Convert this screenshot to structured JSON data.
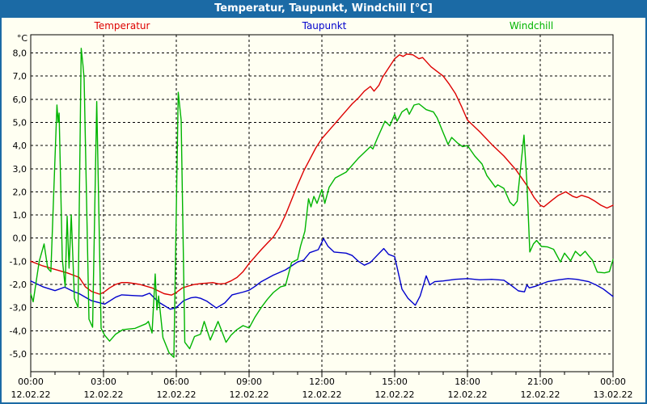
{
  "window": {
    "title": "Temperatur, Taupunkt, Windchill [°C]"
  },
  "legend": {
    "items": [
      {
        "label": "Temperatur",
        "color": "#dd0000"
      },
      {
        "label": "Taupunkt",
        "color": "#0000cc"
      },
      {
        "label": "Windchill",
        "color": "#00b400"
      }
    ]
  },
  "colors": {
    "titlebar": "#1b6aa5",
    "background": "#fffff2",
    "plot_border": "#000000",
    "grid": "#000000",
    "tick_text": "#000000"
  },
  "chart_data": {
    "type": "line",
    "title": "Temperatur, Taupunkt, Windchill [°C]",
    "grid": "dashed",
    "legend_position": "top",
    "y_axis": {
      "unit_label": "°C",
      "min": -5,
      "max": 8,
      "step": 1,
      "tick_labels": [
        "8,0",
        "7,0",
        "6,0",
        "5,0",
        "4,0",
        "3,0",
        "2,0",
        "1,0",
        "0,0",
        "-1,0",
        "-2,0",
        "-3,0",
        "-4,0",
        "-5,0"
      ]
    },
    "x_axis": {
      "span_hours": 24,
      "major_step_hours": 3,
      "minor_step_hours": 1,
      "tick_labels": [
        {
          "time": "00:00",
          "date": "12.02.22"
        },
        {
          "time": "03:00",
          "date": "12.02.22"
        },
        {
          "time": "06:00",
          "date": "12.02.22"
        },
        {
          "time": "09:00",
          "date": "12.02.22"
        },
        {
          "time": "12:00",
          "date": "12.02.22"
        },
        {
          "time": "15:00",
          "date": "12.02.22"
        },
        {
          "time": "18:00",
          "date": "12.02.22"
        },
        {
          "time": "21:00",
          "date": "12.02.22"
        },
        {
          "time": "00:00",
          "date": "13.02.22"
        }
      ]
    },
    "series": [
      {
        "name": "Temperatur",
        "color": "#dd0000",
        "points": [
          [
            0,
            -1.0
          ],
          [
            0.5,
            -1.2
          ],
          [
            1,
            -1.35
          ],
          [
            1.5,
            -1.5
          ],
          [
            1.75,
            -1.6
          ],
          [
            2,
            -1.7
          ],
          [
            2.25,
            -2.1
          ],
          [
            2.5,
            -2.3
          ],
          [
            2.83,
            -2.42
          ],
          [
            3,
            -2.35
          ],
          [
            3.25,
            -2.15
          ],
          [
            3.5,
            -2.0
          ],
          [
            3.75,
            -1.92
          ],
          [
            4,
            -1.92
          ],
          [
            4.5,
            -2.0
          ],
          [
            5,
            -2.15
          ],
          [
            5.5,
            -2.4
          ],
          [
            5.8,
            -2.46
          ],
          [
            6,
            -2.35
          ],
          [
            6.25,
            -2.15
          ],
          [
            6.5,
            -2.07
          ],
          [
            6.75,
            -2.0
          ],
          [
            7,
            -1.97
          ],
          [
            7.5,
            -1.92
          ],
          [
            7.75,
            -1.98
          ],
          [
            8,
            -1.96
          ],
          [
            8.25,
            -1.85
          ],
          [
            8.5,
            -1.7
          ],
          [
            8.75,
            -1.45
          ],
          [
            9,
            -1.1
          ],
          [
            9.25,
            -0.8
          ],
          [
            9.5,
            -0.5
          ],
          [
            9.75,
            -0.22
          ],
          [
            10,
            0.05
          ],
          [
            10.25,
            0.45
          ],
          [
            10.5,
            1.0
          ],
          [
            10.75,
            1.65
          ],
          [
            11,
            2.3
          ],
          [
            11.25,
            2.9
          ],
          [
            11.5,
            3.4
          ],
          [
            11.75,
            3.9
          ],
          [
            12,
            4.3
          ],
          [
            12.25,
            4.6
          ],
          [
            12.5,
            4.9
          ],
          [
            12.75,
            5.2
          ],
          [
            13,
            5.5
          ],
          [
            13.25,
            5.8
          ],
          [
            13.5,
            6.05
          ],
          [
            13.75,
            6.35
          ],
          [
            14,
            6.55
          ],
          [
            14.15,
            6.35
          ],
          [
            14.35,
            6.6
          ],
          [
            14.5,
            6.95
          ],
          [
            14.75,
            7.35
          ],
          [
            15,
            7.75
          ],
          [
            15.2,
            7.92
          ],
          [
            15.35,
            7.85
          ],
          [
            15.5,
            7.95
          ],
          [
            15.75,
            7.92
          ],
          [
            16,
            7.75
          ],
          [
            16.15,
            7.8
          ],
          [
            16.5,
            7.4
          ],
          [
            17,
            7.0
          ],
          [
            17.25,
            6.65
          ],
          [
            17.5,
            6.25
          ],
          [
            17.75,
            5.7
          ],
          [
            18,
            5.1
          ],
          [
            18.25,
            4.85
          ],
          [
            18.5,
            4.6
          ],
          [
            19,
            4.05
          ],
          [
            19.5,
            3.55
          ],
          [
            20,
            2.95
          ],
          [
            20.5,
            2.2
          ],
          [
            20.75,
            1.75
          ],
          [
            21,
            1.42
          ],
          [
            21.15,
            1.35
          ],
          [
            21.5,
            1.65
          ],
          [
            21.75,
            1.85
          ],
          [
            22.05,
            2.0
          ],
          [
            22.35,
            1.8
          ],
          [
            22.5,
            1.75
          ],
          [
            22.7,
            1.85
          ],
          [
            23,
            1.75
          ],
          [
            23.25,
            1.6
          ],
          [
            23.5,
            1.42
          ],
          [
            23.75,
            1.3
          ],
          [
            24,
            1.42
          ]
        ]
      },
      {
        "name": "Taupunkt",
        "color": "#0000cc",
        "points": [
          [
            0,
            -1.85
          ],
          [
            0.5,
            -2.1
          ],
          [
            1,
            -2.27
          ],
          [
            1.4,
            -2.12
          ],
          [
            1.75,
            -2.3
          ],
          [
            2,
            -2.4
          ],
          [
            2.5,
            -2.7
          ],
          [
            3.05,
            -2.85
          ],
          [
            3.5,
            -2.55
          ],
          [
            3.75,
            -2.45
          ],
          [
            4.25,
            -2.48
          ],
          [
            4.6,
            -2.5
          ],
          [
            4.9,
            -2.38
          ],
          [
            5.25,
            -2.75
          ],
          [
            5.75,
            -3.07
          ],
          [
            6,
            -3.0
          ],
          [
            6.3,
            -2.7
          ],
          [
            6.6,
            -2.58
          ],
          [
            6.8,
            -2.55
          ],
          [
            7,
            -2.6
          ],
          [
            7.25,
            -2.72
          ],
          [
            7.65,
            -3.02
          ],
          [
            8,
            -2.8
          ],
          [
            8.3,
            -2.45
          ],
          [
            8.75,
            -2.33
          ],
          [
            9,
            -2.25
          ],
          [
            9.25,
            -2.08
          ],
          [
            9.5,
            -1.88
          ],
          [
            10,
            -1.6
          ],
          [
            10.5,
            -1.37
          ],
          [
            11,
            -1.03
          ],
          [
            11.25,
            -0.95
          ],
          [
            11.5,
            -0.63
          ],
          [
            11.85,
            -0.5
          ],
          [
            12.07,
            -0.02
          ],
          [
            12.25,
            -0.35
          ],
          [
            12.5,
            -0.6
          ],
          [
            13,
            -0.65
          ],
          [
            13.25,
            -0.75
          ],
          [
            13.5,
            -1.0
          ],
          [
            13.75,
            -1.17
          ],
          [
            14,
            -1.05
          ],
          [
            14.3,
            -0.72
          ],
          [
            14.55,
            -0.45
          ],
          [
            14.75,
            -0.7
          ],
          [
            15,
            -0.8
          ],
          [
            15.3,
            -2.2
          ],
          [
            15.55,
            -2.6
          ],
          [
            15.85,
            -2.9
          ],
          [
            16.05,
            -2.5
          ],
          [
            16.3,
            -1.63
          ],
          [
            16.45,
            -2.02
          ],
          [
            16.65,
            -1.88
          ],
          [
            17,
            -1.85
          ],
          [
            17.5,
            -1.78
          ],
          [
            18,
            -1.75
          ],
          [
            18.5,
            -1.8
          ],
          [
            19,
            -1.78
          ],
          [
            19.5,
            -1.82
          ],
          [
            19.75,
            -2.0
          ],
          [
            20.1,
            -2.28
          ],
          [
            20.35,
            -2.32
          ],
          [
            20.45,
            -2.02
          ],
          [
            20.55,
            -2.15
          ],
          [
            20.8,
            -2.08
          ],
          [
            21,
            -2.0
          ],
          [
            21.3,
            -1.88
          ],
          [
            21.75,
            -1.8
          ],
          [
            22.15,
            -1.75
          ],
          [
            22.5,
            -1.78
          ],
          [
            23,
            -1.88
          ],
          [
            23.3,
            -2.02
          ],
          [
            23.6,
            -2.2
          ],
          [
            24,
            -2.52
          ]
        ]
      },
      {
        "name": "Windchill",
        "color": "#00b400",
        "points": [
          [
            0,
            -2.4
          ],
          [
            0.1,
            -2.75
          ],
          [
            0.35,
            -1.0
          ],
          [
            0.55,
            -0.25
          ],
          [
            0.7,
            -1.3
          ],
          [
            0.83,
            -1.45
          ],
          [
            1.08,
            5.75
          ],
          [
            1.13,
            5.0
          ],
          [
            1.17,
            5.4
          ],
          [
            1.3,
            -0.9
          ],
          [
            1.42,
            -2.1
          ],
          [
            1.5,
            0.95
          ],
          [
            1.58,
            -1.3
          ],
          [
            1.67,
            1.0
          ],
          [
            1.8,
            -2.6
          ],
          [
            1.95,
            -3.0
          ],
          [
            2.08,
            8.2
          ],
          [
            2.15,
            7.5
          ],
          [
            2.2,
            6.9
          ],
          [
            2.4,
            -3.5
          ],
          [
            2.55,
            -3.85
          ],
          [
            2.72,
            5.9
          ],
          [
            2.9,
            -3.9
          ],
          [
            3.05,
            -4.2
          ],
          [
            3.25,
            -4.45
          ],
          [
            3.5,
            -4.15
          ],
          [
            3.8,
            -3.95
          ],
          [
            4.3,
            -3.9
          ],
          [
            4.75,
            -3.7
          ],
          [
            4.85,
            -3.6
          ],
          [
            5,
            -4.1
          ],
          [
            5.13,
            -1.55
          ],
          [
            5.2,
            -3.1
          ],
          [
            5.27,
            -2.5
          ],
          [
            5.45,
            -4.3
          ],
          [
            5.7,
            -4.95
          ],
          [
            5.9,
            -5.15
          ],
          [
            6.08,
            6.3
          ],
          [
            6.2,
            5.1
          ],
          [
            6.35,
            -4.5
          ],
          [
            6.55,
            -4.78
          ],
          [
            6.75,
            -4.25
          ],
          [
            7,
            -4.15
          ],
          [
            7.15,
            -3.6
          ],
          [
            7.4,
            -4.4
          ],
          [
            7.72,
            -3.6
          ],
          [
            8.05,
            -4.5
          ],
          [
            8.25,
            -4.2
          ],
          [
            8.5,
            -3.95
          ],
          [
            8.75,
            -3.78
          ],
          [
            9,
            -3.88
          ],
          [
            9.25,
            -3.4
          ],
          [
            9.5,
            -3.0
          ],
          [
            9.75,
            -2.65
          ],
          [
            10,
            -2.35
          ],
          [
            10.3,
            -2.1
          ],
          [
            10.5,
            -2.05
          ],
          [
            10.75,
            -1.05
          ],
          [
            11,
            -0.92
          ],
          [
            11.12,
            -0.35
          ],
          [
            11.3,
            0.3
          ],
          [
            11.45,
            1.7
          ],
          [
            11.55,
            1.35
          ],
          [
            11.67,
            1.8
          ],
          [
            11.8,
            1.5
          ],
          [
            12,
            2.1
          ],
          [
            12.12,
            1.5
          ],
          [
            12.3,
            2.2
          ],
          [
            12.55,
            2.6
          ],
          [
            13,
            2.85
          ],
          [
            13.5,
            3.45
          ],
          [
            14,
            3.95
          ],
          [
            14.1,
            3.85
          ],
          [
            14.3,
            4.35
          ],
          [
            14.6,
            5.05
          ],
          [
            14.8,
            4.85
          ],
          [
            15,
            5.35
          ],
          [
            15.1,
            5.05
          ],
          [
            15.3,
            5.45
          ],
          [
            15.5,
            5.6
          ],
          [
            15.6,
            5.35
          ],
          [
            15.8,
            5.75
          ],
          [
            16,
            5.8
          ],
          [
            16.3,
            5.55
          ],
          [
            16.6,
            5.45
          ],
          [
            16.75,
            5.2
          ],
          [
            17,
            4.55
          ],
          [
            17.2,
            4.05
          ],
          [
            17.35,
            4.35
          ],
          [
            17.6,
            4.1
          ],
          [
            17.8,
            3.95
          ],
          [
            18,
            4.0
          ],
          [
            18.3,
            3.55
          ],
          [
            18.6,
            3.2
          ],
          [
            18.8,
            2.7
          ],
          [
            19,
            2.42
          ],
          [
            19.15,
            2.2
          ],
          [
            19.25,
            2.3
          ],
          [
            19.5,
            2.15
          ],
          [
            19.75,
            1.55
          ],
          [
            19.9,
            1.4
          ],
          [
            20.05,
            1.6
          ],
          [
            20.33,
            4.45
          ],
          [
            20.45,
            2.4
          ],
          [
            20.57,
            -0.6
          ],
          [
            20.72,
            -0.25
          ],
          [
            20.85,
            -0.1
          ],
          [
            21.05,
            -0.36
          ],
          [
            21.3,
            -0.38
          ],
          [
            21.55,
            -0.48
          ],
          [
            21.83,
            -1.03
          ],
          [
            22,
            -0.65
          ],
          [
            22.25,
            -0.98
          ],
          [
            22.45,
            -0.57
          ],
          [
            22.65,
            -0.77
          ],
          [
            22.85,
            -0.57
          ],
          [
            23,
            -0.77
          ],
          [
            23.15,
            -0.95
          ],
          [
            23.35,
            -1.47
          ],
          [
            23.65,
            -1.5
          ],
          [
            23.85,
            -1.45
          ],
          [
            24,
            -0.92
          ]
        ]
      }
    ]
  }
}
